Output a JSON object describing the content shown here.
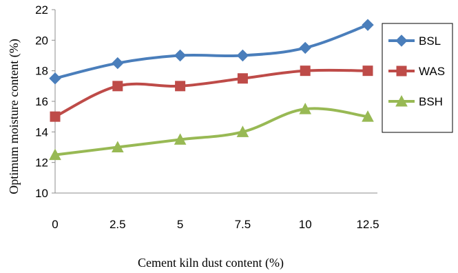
{
  "chart_data": {
    "type": "line",
    "title": "",
    "xlabel": "Cement kiln dust content (%)",
    "ylabel": "Optimum moisture content (%)",
    "x": [
      0,
      2.5,
      5,
      7.5,
      10,
      12.5
    ],
    "x_tick_labels": [
      "0",
      "2.5",
      "5",
      "7.5",
      "10",
      "12.5"
    ],
    "y_tick_labels": [
      "10",
      "12",
      "14",
      "16",
      "18",
      "20",
      "22"
    ],
    "ylim": [
      10,
      22
    ],
    "grid": false,
    "legend_position": "right",
    "series": [
      {
        "name": "BSL",
        "values": [
          17.5,
          18.5,
          19.0,
          19.0,
          19.5,
          21.0
        ],
        "color": "#4A7EBB",
        "marker": "diamond"
      },
      {
        "name": "WAS",
        "values": [
          15.0,
          17.0,
          17.0,
          17.5,
          18.0,
          18.0
        ],
        "color": "#BE4B48",
        "marker": "square"
      },
      {
        "name": "BSH",
        "values": [
          12.5,
          13.0,
          13.5,
          14.0,
          15.5,
          15.0
        ],
        "color": "#98B954",
        "marker": "triangle"
      }
    ]
  }
}
